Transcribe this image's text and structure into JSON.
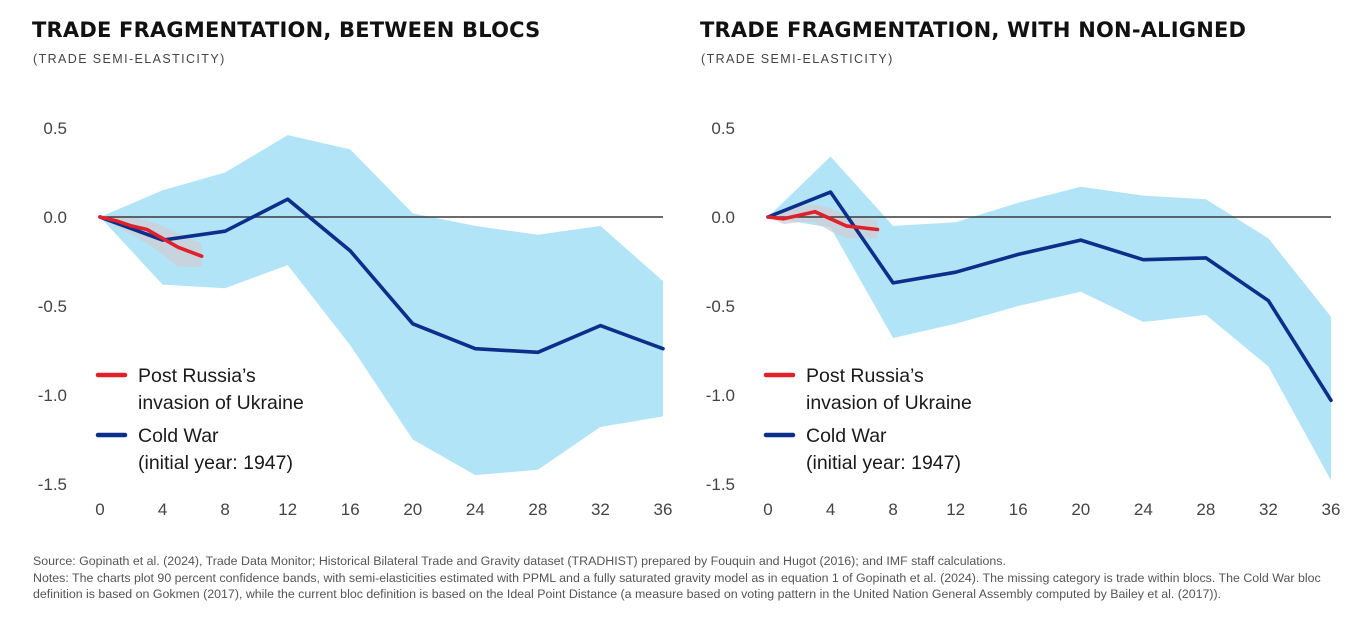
{
  "chart_data": [
    {
      "type": "line",
      "title": "TRADE FRAGMENTATION, BETWEEN BLOCS",
      "subtitle": "(TRADE SEMI-ELASTICITY)",
      "xlabel": "",
      "ylabel": "",
      "xlim": [
        0,
        36
      ],
      "ylim": [
        -1.5,
        0.5
      ],
      "x_ticks": [
        0,
        4,
        8,
        12,
        16,
        20,
        24,
        28,
        32,
        36
      ],
      "y_ticks": [
        0.5,
        0.0,
        -0.5,
        -1.0,
        -1.5
      ],
      "y_tick_labels": [
        "0.5",
        "0.0",
        "-0.5",
        "-1.0",
        "-1.5"
      ],
      "grid": false,
      "zero_line": true,
      "legend_position": "bottom-left",
      "series": [
        {
          "name": "Cold War (initial year: 1947)",
          "legend_lines": [
            "Cold War",
            "(initial year: 1947)"
          ],
          "color": "#0b2f8a",
          "x": [
            0,
            4,
            8,
            12,
            16,
            20,
            24,
            28,
            32,
            36
          ],
          "y": [
            0.0,
            -0.13,
            -0.08,
            0.1,
            -0.19,
            -0.6,
            -0.74,
            -0.76,
            -0.61,
            -0.74
          ],
          "band_color": "#aee3f7",
          "band_lower": [
            0.0,
            -0.38,
            -0.4,
            -0.27,
            -0.72,
            -1.25,
            -1.45,
            -1.42,
            -1.18,
            -1.12
          ],
          "band_upper": [
            0.0,
            0.15,
            0.25,
            0.46,
            0.38,
            0.02,
            -0.05,
            -0.1,
            -0.05,
            -0.36
          ]
        },
        {
          "name": "Post Russia's invasion of Ukraine",
          "legend_lines": [
            "Post Russia’s",
            "invasion of Ukraine"
          ],
          "color": "#e0202a",
          "x": [
            0,
            1,
            2,
            3,
            4,
            5,
            6.5
          ],
          "y": [
            0.0,
            -0.02,
            -0.05,
            -0.07,
            -0.12,
            -0.17,
            -0.22
          ],
          "band_color": "#cfcfd4",
          "band_lower": [
            0.0,
            -0.05,
            -0.1,
            -0.15,
            -0.21,
            -0.28,
            -0.28
          ],
          "band_upper": [
            0.0,
            0.01,
            0.0,
            -0.02,
            -0.05,
            -0.09,
            -0.15
          ]
        }
      ]
    },
    {
      "type": "line",
      "title": "TRADE FRAGMENTATION, WITH NON-ALIGNED",
      "subtitle": "(TRADE SEMI-ELASTICITY)",
      "xlabel": "",
      "ylabel": "",
      "xlim": [
        0,
        36
      ],
      "ylim": [
        -1.5,
        0.5
      ],
      "x_ticks": [
        0,
        4,
        8,
        12,
        16,
        20,
        24,
        28,
        32,
        36
      ],
      "y_ticks": [
        0.5,
        0.0,
        -0.5,
        -1.0,
        -1.5
      ],
      "y_tick_labels": [
        "0.5",
        "0.0",
        "-0.5",
        "-1.0",
        "-1.5"
      ],
      "grid": false,
      "zero_line": true,
      "legend_position": "bottom-left",
      "series": [
        {
          "name": "Cold War (initial year: 1947)",
          "legend_lines": [
            "Cold War",
            "(initial year: 1947)"
          ],
          "color": "#0b2f8a",
          "x": [
            0,
            4,
            8,
            12,
            16,
            20,
            24,
            28,
            32,
            36
          ],
          "y": [
            0.0,
            0.14,
            -0.37,
            -0.31,
            -0.21,
            -0.13,
            -0.24,
            -0.23,
            -0.47,
            -1.03
          ],
          "band_color": "#aee3f7",
          "band_lower": [
            0.0,
            -0.06,
            -0.68,
            -0.6,
            -0.5,
            -0.42,
            -0.59,
            -0.55,
            -0.84,
            -1.48
          ],
          "band_upper": [
            0.0,
            0.34,
            -0.05,
            -0.03,
            0.08,
            0.17,
            0.12,
            0.1,
            -0.12,
            -0.56
          ]
        },
        {
          "name": "Post Russia's invasion of Ukraine",
          "legend_lines": [
            "Post Russia’s",
            "invasion of Ukraine"
          ],
          "color": "#e0202a",
          "x": [
            0,
            1,
            2,
            3,
            4,
            5,
            7
          ],
          "y": [
            0.0,
            -0.01,
            0.01,
            0.03,
            -0.01,
            -0.05,
            -0.07
          ],
          "band_color": "#cfcfd4",
          "band_lower": [
            0.0,
            -0.04,
            -0.03,
            -0.03,
            -0.08,
            -0.12,
            -0.12
          ],
          "band_upper": [
            0.0,
            0.03,
            0.06,
            0.07,
            0.05,
            0.01,
            -0.02
          ]
        }
      ]
    }
  ],
  "footer": {
    "source": "Source: Gopinath et al. (2024), Trade Data Monitor; Historical Bilateral Trade and Gravity dataset (TRADHIST) prepared by Fouquin and Hugot (2016); and IMF staff calculations.",
    "notes": "Notes: The charts plot 90 percent confidence bands, with semi-elasticities estimated with PPML and a fully saturated gravity model as in equation 1 of Gopinath et al. (2024). The missing category is trade within blocs. The Cold War bloc definition is based on Gokmen (2017), while the current bloc definition is based on the Ideal Point Distance (a measure based on voting pattern in the United Nation General Assembly computed by Bailey et al. (2017))."
  }
}
